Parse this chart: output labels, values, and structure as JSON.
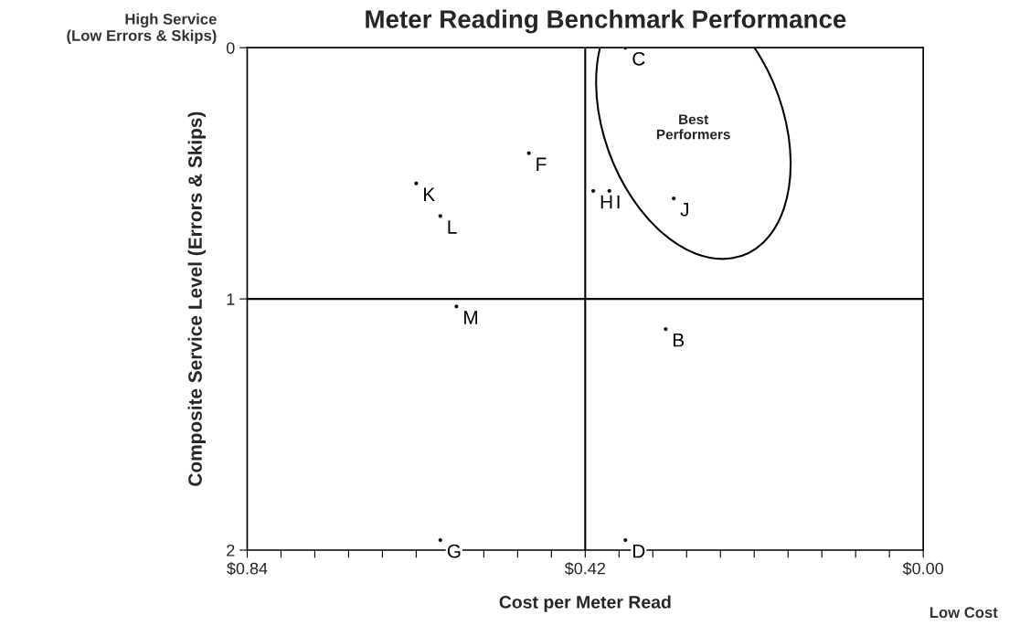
{
  "chart_data": {
    "type": "scatter",
    "title": "Meter Reading Benchmark Performance",
    "xlabel": "Cost per Meter Read",
    "ylabel": "Composite Service Level (Errors & Skips)",
    "annotations": [
      "High Service\n(Low Errors & Skips)",
      "Low Cost",
      "Best\nPerformers"
    ],
    "series": [
      {
        "color": "#000000",
        "x": [
          0.37,
          0.49,
          0.63,
          0.6,
          0.41,
          0.39,
          0.31,
          0.58,
          0.32,
          0.6,
          0.37
        ],
        "values": [
          0.0,
          0.42,
          0.54,
          0.67,
          0.57,
          0.57,
          0.6,
          1.03,
          1.12,
          1.96,
          1.96
        ],
        "value_labels": [
          "C",
          "F",
          "K",
          "L",
          "H",
          "I",
          "J",
          "M",
          "B",
          "G",
          "D"
        ]
      }
    ],
    "marker": "circle",
    "xlim": [
      0.84,
      0.0
    ],
    "ylim": [
      2,
      0
    ],
    "xticks": [
      {
        "value": 0.84,
        "label": "$0.84"
      },
      {
        "value": 0.798,
        "label": null
      },
      {
        "value": 0.756,
        "label": null
      },
      {
        "value": 0.714,
        "label": null
      },
      {
        "value": 0.672,
        "label": null
      },
      {
        "value": 0.63,
        "label": null
      },
      {
        "value": 0.588,
        "label": null
      },
      {
        "value": 0.546,
        "label": null
      },
      {
        "value": 0.504,
        "label": null
      },
      {
        "value": 0.462,
        "label": null
      },
      {
        "value": 0.42,
        "label": "$0.42"
      },
      {
        "value": 0.378,
        "label": null
      },
      {
        "value": 0.336,
        "label": null
      },
      {
        "value": 0.294,
        "label": null
      },
      {
        "value": 0.252,
        "label": null
      },
      {
        "value": 0.21,
        "label": null
      },
      {
        "value": 0.168,
        "label": null
      },
      {
        "value": 0.126,
        "label": null
      },
      {
        "value": 0.084,
        "label": null
      },
      {
        "value": 0.042,
        "label": null
      },
      {
        "value": 0.0,
        "label": "$0.00"
      }
    ],
    "yticks": [
      0,
      1,
      2
    ],
    "ref_lines": [
      {
        "axis": "x",
        "value": 0.42,
        "color": "#000000"
      },
      {
        "axis": "y",
        "value": 1,
        "color": "#000000"
      }
    ],
    "grid": false,
    "legend": false
  }
}
